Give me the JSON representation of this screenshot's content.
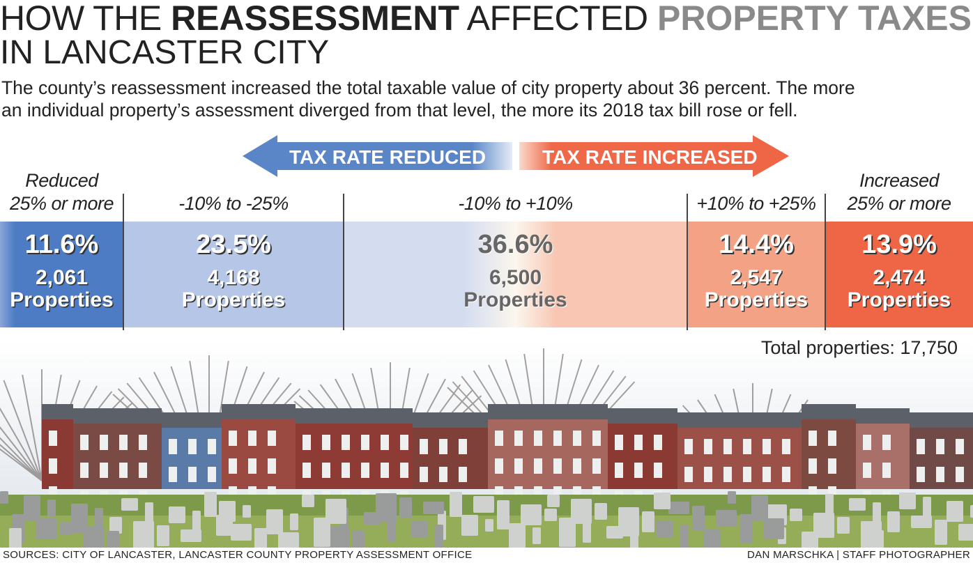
{
  "title": {
    "part1": "HOW THE ",
    "part2": "REASSESSMENT",
    "part3": " AFFECTED ",
    "part4": "PROPERTY TAXES",
    "line2": "IN LANCASTER CITY"
  },
  "subtitle": [
    "The county’s reassessment increased the total taxable value of city property about 36 percent. The more",
    "an individual property’s assessment diverged from that level, the more its 2018 tax bill rose or fell."
  ],
  "arrows": {
    "reduced": "TAX RATE REDUCED",
    "increased": "TAX RATE INCREASED"
  },
  "colors": {
    "dark_blue": "#4d7cc4",
    "light_blue": "#b5c6e6",
    "pale_blue": "#d4ddf0",
    "peach": "#f8c6b2",
    "salmon": "#f3a286",
    "red": "#ef6646"
  },
  "chart_data": {
    "type": "bar",
    "title": "How the reassessment affected property taxes in Lancaster City",
    "categories": [
      "Reduced 25% or more",
      "-10% to -25%",
      "-10% to +10%",
      "+10% to +25%",
      "Increased 25% or more"
    ],
    "header_lines": [
      [
        "Reduced",
        "25% or more"
      ],
      [
        "",
        "-10% to -25%"
      ],
      [
        "",
        "-10% to +10%"
      ],
      [
        "",
        "+10% to +25%"
      ],
      [
        "Increased",
        "25% or more"
      ]
    ],
    "percent_labels": [
      "11.6%",
      "23.5%",
      "36.6%",
      "14.4%",
      "13.9%"
    ],
    "percents": [
      11.6,
      23.5,
      36.6,
      14.4,
      13.9
    ],
    "count_labels": [
      "2,061",
      "4,168",
      "6,500",
      "2,547",
      "2,474"
    ],
    "counts": [
      2061,
      4168,
      6500,
      2547,
      2474
    ],
    "unit": "Properties",
    "total": "Total properties: 17,750"
  },
  "footer": {
    "sources": "SOURCES:  CITY OF LANCASTER, LANCASTER COUNTY PROPERTY ASSESSMENT OFFICE",
    "credit": "DAN MARSCHKA | STAFF PHOTOGRAPHER"
  }
}
